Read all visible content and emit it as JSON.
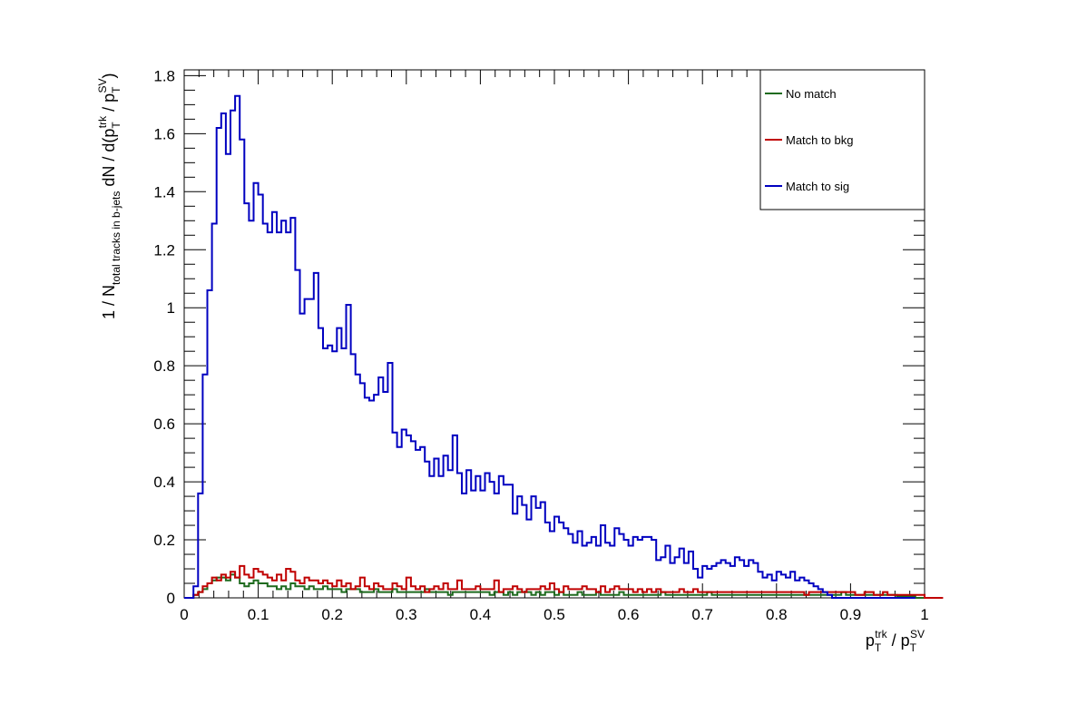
{
  "chart_data": {
    "type": "line",
    "x_bin_edges_start": 0,
    "x_bin_width": 0.00625,
    "xlim": [
      0,
      1
    ],
    "ylim": [
      0,
      1.82
    ],
    "x_ticks": [
      "0",
      "0.1",
      "0.2",
      "0.3",
      "0.4",
      "0.5",
      "0.6",
      "0.7",
      "0.8",
      "0.9",
      "1"
    ],
    "y_ticks": [
      "0",
      "0.2",
      "0.4",
      "0.6",
      "0.8",
      "1",
      "1.2",
      "1.4",
      "1.6",
      "1.8"
    ],
    "x_tick_values": [
      0,
      0.1,
      0.2,
      0.3,
      0.4,
      0.5,
      0.6,
      0.7,
      0.8,
      0.9,
      1
    ],
    "y_tick_values": [
      0,
      0.2,
      0.4,
      0.6,
      0.8,
      1,
      1.2,
      1.4,
      1.6,
      1.8
    ],
    "xlabel": {
      "p1": "p",
      "sub1": "T",
      "sup1": "trk",
      "sep": " / ",
      "p2": "p",
      "sub2": "T",
      "sup2": "SV"
    },
    "ylabel": {
      "a": "1 / N",
      "a_sub": "total tracks in b-jets",
      "b": " dN / d(p",
      "b_sub": "T",
      "b_sup": "trk",
      "c": " / p",
      "c_sub": "T",
      "c_sup": "SV",
      "d": ")"
    },
    "legend_position": "top-right",
    "series": [
      {
        "name": "No match",
        "color": "#1f6b1f",
        "values": [
          0,
          0,
          0.01,
          0.02,
          0.03,
          0.05,
          0.06,
          0.07,
          0.07,
          0.06,
          0.08,
          0.07,
          0.05,
          0.04,
          0.05,
          0.06,
          0.05,
          0.05,
          0.04,
          0.04,
          0.03,
          0.04,
          0.03,
          0.05,
          0.04,
          0.04,
          0.03,
          0.04,
          0.03,
          0.03,
          0.04,
          0.03,
          0.03,
          0.03,
          0.02,
          0.03,
          0.03,
          0.03,
          0.02,
          0.02,
          0.02,
          0.03,
          0.02,
          0.02,
          0.02,
          0.03,
          0.02,
          0.02,
          0.02,
          0.02,
          0.02,
          0.02,
          0.03,
          0.02,
          0.02,
          0.02,
          0.02,
          0.01,
          0.02,
          0.02,
          0.02,
          0.02,
          0.02,
          0.02,
          0.02,
          0.02,
          0.01,
          0.02,
          0.02,
          0.01,
          0.02,
          0.01,
          0.02,
          0.02,
          0.02,
          0.01,
          0.02,
          0.01,
          0.02,
          0.02,
          0.01,
          0.02,
          0.01,
          0.01,
          0.01,
          0.02,
          0.01,
          0.01,
          0.01,
          0.02,
          0.01,
          0.01,
          0.01,
          0.01,
          0.02,
          0.01,
          0.01,
          0.01,
          0.01,
          0.01,
          0.01,
          0.01,
          0.01,
          0.02,
          0.01,
          0.01,
          0.01,
          0.01,
          0.01,
          0.01,
          0.01,
          0.01,
          0.01,
          0.02,
          0.01,
          0.01,
          0.01,
          0.01,
          0.01,
          0.01,
          0.01,
          0.01,
          0.01,
          0.01,
          0.01,
          0.01,
          0.01,
          0.01,
          0.01,
          0.01,
          0.01,
          0.01,
          0.01,
          0.01,
          0.01,
          0.01,
          0.01,
          0.01,
          0.01,
          0.01,
          0.01,
          0.01,
          0.02,
          0.01,
          0.01,
          0.01,
          0.01,
          0.01,
          0.01,
          0.01,
          0.01,
          0.01,
          0.01,
          0.01,
          0.005,
          0.005,
          0.005,
          0.005,
          0,
          0,
          0
        ]
      },
      {
        "name": "Match to bkg",
        "color": "#c00000",
        "values": [
          0,
          0,
          0.01,
          0.02,
          0.04,
          0.05,
          0.07,
          0.06,
          0.08,
          0.07,
          0.09,
          0.07,
          0.11,
          0.08,
          0.07,
          0.1,
          0.09,
          0.08,
          0.07,
          0.06,
          0.08,
          0.06,
          0.1,
          0.09,
          0.06,
          0.05,
          0.07,
          0.06,
          0.06,
          0.05,
          0.06,
          0.05,
          0.04,
          0.06,
          0.04,
          0.05,
          0.03,
          0.04,
          0.07,
          0.04,
          0.03,
          0.05,
          0.04,
          0.03,
          0.03,
          0.05,
          0.04,
          0.03,
          0.07,
          0.04,
          0.03,
          0.04,
          0.02,
          0.03,
          0.04,
          0.03,
          0.05,
          0.03,
          0.03,
          0.06,
          0.03,
          0.03,
          0.03,
          0.04,
          0.03,
          0.03,
          0.03,
          0.06,
          0.02,
          0.03,
          0.03,
          0.04,
          0.03,
          0.02,
          0.03,
          0.03,
          0.03,
          0.04,
          0.03,
          0.05,
          0.03,
          0.02,
          0.04,
          0.03,
          0.03,
          0.03,
          0.04,
          0.03,
          0.03,
          0.02,
          0.04,
          0.02,
          0.03,
          0.04,
          0.03,
          0.03,
          0.03,
          0.02,
          0.03,
          0.02,
          0.03,
          0.02,
          0.03,
          0.02,
          0.02,
          0.02,
          0.02,
          0.03,
          0.02,
          0.02,
          0.03,
          0.02,
          0.02,
          0.02,
          0.02,
          0.02,
          0.02,
          0.02,
          0.02,
          0.02,
          0.02,
          0.02,
          0.02,
          0.02,
          0.02,
          0.02,
          0.02,
          0.02,
          0.02,
          0.02,
          0.02,
          0.02,
          0.02,
          0.02,
          0.01,
          0.02,
          0.02,
          0.02,
          0.02,
          0.02,
          0.02,
          0.02,
          0.02,
          0.02,
          0.02,
          0.01,
          0.01,
          0.02,
          0.02,
          0.01,
          0.01,
          0.02,
          0.01,
          0.01,
          0.01,
          0.01,
          0.01,
          0.01,
          0.01,
          0.01,
          0,
          0,
          0,
          0
        ]
      },
      {
        "name": "Match to sig",
        "color": "#0000c0",
        "values": [
          0,
          0,
          0.04,
          0.36,
          0.77,
          1.06,
          1.29,
          1.62,
          1.67,
          1.53,
          1.68,
          1.73,
          1.58,
          1.36,
          1.3,
          1.43,
          1.39,
          1.29,
          1.26,
          1.33,
          1.26,
          1.3,
          1.26,
          1.31,
          1.13,
          0.98,
          1.03,
          1.03,
          1.12,
          0.93,
          0.86,
          0.87,
          0.85,
          0.93,
          0.86,
          1.01,
          0.84,
          0.77,
          0.74,
          0.69,
          0.68,
          0.7,
          0.76,
          0.71,
          0.81,
          0.57,
          0.52,
          0.58,
          0.56,
          0.54,
          0.51,
          0.52,
          0.47,
          0.42,
          0.48,
          0.42,
          0.49,
          0.44,
          0.56,
          0.43,
          0.36,
          0.44,
          0.37,
          0.42,
          0.37,
          0.43,
          0.4,
          0.36,
          0.42,
          0.39,
          0.39,
          0.29,
          0.35,
          0.32,
          0.27,
          0.35,
          0.31,
          0.33,
          0.26,
          0.23,
          0.28,
          0.26,
          0.24,
          0.22,
          0.19,
          0.23,
          0.18,
          0.19,
          0.21,
          0.18,
          0.25,
          0.19,
          0.18,
          0.24,
          0.22,
          0.2,
          0.18,
          0.21,
          0.2,
          0.21,
          0.21,
          0.2,
          0.13,
          0.14,
          0.18,
          0.12,
          0.14,
          0.17,
          0.12,
          0.16,
          0.1,
          0.07,
          0.11,
          0.1,
          0.11,
          0.12,
          0.13,
          0.12,
          0.11,
          0.14,
          0.13,
          0.11,
          0.13,
          0.12,
          0.09,
          0.07,
          0.08,
          0.06,
          0.09,
          0.08,
          0.07,
          0.09,
          0.06,
          0.07,
          0.06,
          0.05,
          0.04,
          0.03,
          0.02,
          0.01,
          0,
          0,
          0,
          0,
          0,
          0,
          0,
          0,
          0,
          0,
          0,
          0,
          0,
          0,
          0,
          0,
          0,
          0
        ]
      }
    ]
  },
  "legend": {
    "no_match": "No match",
    "match_bkg": "Match to bkg",
    "match_sig": "Match to sig"
  }
}
